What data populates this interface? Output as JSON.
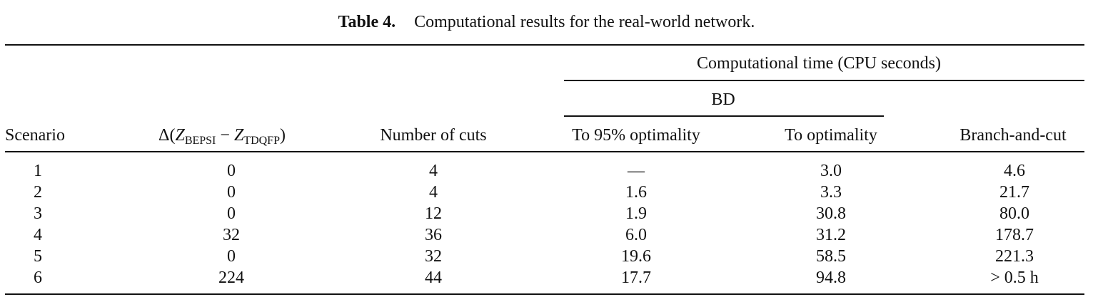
{
  "caption": {
    "label": "Table 4.",
    "text": "Computational results for the real-world network."
  },
  "headers": {
    "group_time": "Computational time (CPU seconds)",
    "group_bd": "BD",
    "scenario": "Scenario",
    "delta": {
      "prefix": "Δ(",
      "z1": "Z",
      "sub1": "BEPSI",
      "minus": " − ",
      "z2": "Z",
      "sub2": "TDQFP",
      "suffix": ")"
    },
    "cuts": "Number of cuts",
    "to95": "To 95% optimality",
    "toopt": "To optimality",
    "bnc": "Branch-and-cut"
  },
  "rows": [
    {
      "scenario": "1",
      "delta": "0",
      "cuts": "4",
      "to95": "—",
      "toopt": "3.0",
      "bnc": "4.6"
    },
    {
      "scenario": "2",
      "delta": "0",
      "cuts": "4",
      "to95": "1.6",
      "toopt": "3.3",
      "bnc": "21.7"
    },
    {
      "scenario": "3",
      "delta": "0",
      "cuts": "12",
      "to95": "1.9",
      "toopt": "30.8",
      "bnc": "80.0"
    },
    {
      "scenario": "4",
      "delta": "32",
      "cuts": "36",
      "to95": "6.0",
      "toopt": "31.2",
      "bnc": "178.7"
    },
    {
      "scenario": "5",
      "delta": "0",
      "cuts": "32",
      "to95": "19.6",
      "toopt": "58.5",
      "bnc": "221.3"
    },
    {
      "scenario": "6",
      "delta": "224",
      "cuts": "44",
      "to95": "17.7",
      "toopt": "94.8",
      "bnc": "> 0.5 h"
    }
  ]
}
